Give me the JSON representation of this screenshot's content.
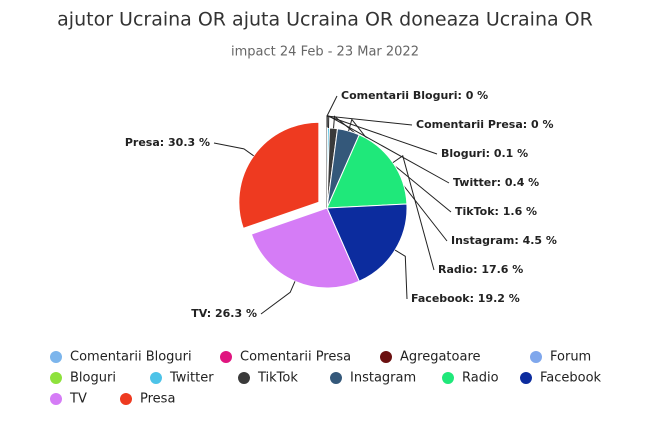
{
  "chart_data": {
    "type": "pie",
    "title": "ajutor Ucraina OR ajuta Ucraina OR doneaza Ucraina OR",
    "subtitle": "impact 24 Feb - 23 Mar 2022",
    "categories": [
      "Comentarii Bloguri",
      "Comentarii Presa",
      "Agregatoare",
      "Forum",
      "Bloguri",
      "Twitter",
      "TikTok",
      "Instagram",
      "Radio",
      "Facebook",
      "TV",
      "Presa"
    ],
    "values": [
      0,
      0,
      null,
      null,
      0.1,
      0.4,
      1.6,
      4.5,
      17.6,
      19.2,
      26.3,
      30.3
    ],
    "value_labels": [
      "Comentarii Bloguri: 0 %",
      "Comentarii Presa: 0 %",
      null,
      null,
      "Bloguri: 0.1 %",
      "Twitter: 0.4 %",
      "TikTok: 1.6 %",
      "Instagram: 4.5 %",
      "Radio: 17.6 %",
      "Facebook: 19.2 %",
      "TV: 26.3 %",
      "Presa: 30.3 %"
    ],
    "colors": [
      "#7cb5ec",
      "#e0157f",
      "#6b1010",
      "#7fa7ec",
      "#8ee23c",
      "#4dc3e8",
      "#3a3a3a",
      "#34587a",
      "#1fe87a",
      "#0c2c9e",
      "#d57cf6",
      "#ee3a20"
    ],
    "legend": "bottom"
  }
}
